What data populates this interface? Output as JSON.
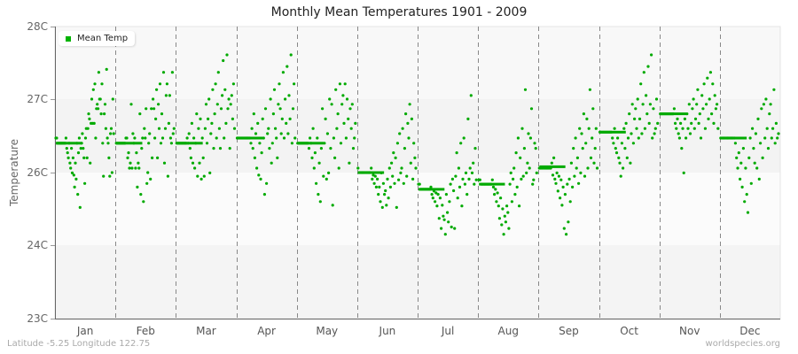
{
  "title": "Monthly Mean Temperatures 1901 - 2009",
  "footer": {
    "location": "Latitude -5.25 Longitude 122.75",
    "source": "worldspecies.org"
  },
  "legend": {
    "label": "Mean Temp",
    "color": "#00b300"
  },
  "colors": {
    "series": "#00aa00",
    "axis": "#666666",
    "grid_dash": "#888888",
    "bands": [
      "#f8f8f8",
      "#f3f3f3",
      "#fbfbfb",
      "#f4f4f4"
    ]
  },
  "chart_data": {
    "type": "scatter",
    "title": "Monthly Mean Temperatures 1901 - 2009",
    "xlabel": "",
    "ylabel": "Temperature",
    "categories": [
      "Jan",
      "Feb",
      "Mar",
      "Apr",
      "May",
      "Jun",
      "Jul",
      "Aug",
      "Sep",
      "Oct",
      "Nov",
      "Dec"
    ],
    "y_ticks": [
      {
        "label": "28C",
        "value": 28
      },
      {
        "label": "27C",
        "value": 27
      },
      {
        "label": "26C",
        "value": 26
      },
      {
        "label": "24C",
        "value": 24
      },
      {
        "label": "23C",
        "value": 23
      }
    ],
    "ylim": [
      23,
      28
    ],
    "grid": "month dividers dashed, horizontal banding",
    "legend_position": "top-left inside",
    "series": [
      {
        "name": "Mean Temp",
        "monthly_mean": [
          26.4,
          26.4,
          26.4,
          26.47,
          26.4,
          26.0,
          25.54,
          25.68,
          26.08,
          26.55,
          26.8,
          26.47
        ],
        "points": [
          [
            26.47,
            26.47,
            26.4,
            26.4,
            26.4,
            26.4,
            26.4,
            26.4,
            26.4,
            26.4,
            26.4,
            26.4,
            26.4,
            26.47,
            26.33,
            26.27,
            26.2,
            26.4,
            26.13,
            26.06,
            26.33,
            25.99,
            26.2,
            25.93,
            25.6,
            26.13,
            25.82,
            26.4,
            25.4,
            26.27,
            26.47,
            25.04,
            26.33,
            26.4,
            26.53,
            26.33,
            26.2,
            25.7,
            26.47,
            26.6,
            26.2,
            26.6,
            26.8,
            26.73,
            26.13,
            26.67,
            27.0,
            26.67,
            27.13,
            26.67,
            27.21,
            26.47,
            26.87,
            26.93,
            26.87,
            27.37,
            27.0,
            27.0,
            26.8,
            27.21,
            26.4,
            25.9,
            26.8,
            26.93,
            26.6,
            27.41,
            26.47,
            26.4,
            26.2,
            25.9,
            26.53,
            26.6,
            26.0,
            27.0,
            26.53
          ],
          [
            26.4,
            26.4,
            26.4,
            26.4,
            26.4,
            26.4,
            26.4,
            26.4,
            26.4,
            26.4,
            26.4,
            26.47,
            26.47,
            26.2,
            26.27,
            26.06,
            26.13,
            26.93,
            26.06,
            26.53,
            26.4,
            26.47,
            26.06,
            26.27,
            25.6,
            26.13,
            26.06,
            26.8,
            25.4,
            26.33,
            26.47,
            25.2,
            26.6,
            26.47,
            26.87,
            25.7,
            26.0,
            26.4,
            26.53,
            25.82,
            26.87,
            26.2,
            27.0,
            26.87,
            26.47,
            26.73,
            27.13,
            26.2,
            26.93,
            26.6,
            27.21,
            26.4,
            26.8,
            26.47,
            27.37,
            26.13,
            26.6,
            27.05,
            27.21,
            25.9,
            26.67,
            27.05,
            26.47,
            26.4,
            27.37,
            26.53,
            26.6
          ],
          [
            26.4,
            26.4,
            26.4,
            26.4,
            26.4,
            26.4,
            26.4,
            26.4,
            26.4,
            26.4,
            26.4,
            26.47,
            26.4,
            26.53,
            26.33,
            26.2,
            26.67,
            26.13,
            26.47,
            26.06,
            26.4,
            26.8,
            25.9,
            26.6,
            26.13,
            26.73,
            25.82,
            26.47,
            26.2,
            25.9,
            26.6,
            26.93,
            26.4,
            26.73,
            27.0,
            25.99,
            26.53,
            26.67,
            27.13,
            26.33,
            26.8,
            27.21,
            26.47,
            26.93,
            27.37,
            26.6,
            26.33,
            26.87,
            27.05,
            27.53,
            26.47,
            27.13,
            26.67,
            27.61,
            26.87,
            27.0,
            26.33,
            26.93,
            27.05,
            26.73,
            27.21,
            26.6
          ],
          [
            26.47,
            26.47,
            26.47,
            26.47,
            26.47,
            26.47,
            26.47,
            26.47,
            26.47,
            26.47,
            26.47,
            26.47,
            26.47,
            26.47,
            26.4,
            26.6,
            26.33,
            26.8,
            26.2,
            26.53,
            26.06,
            26.67,
            25.93,
            26.4,
            25.82,
            26.27,
            26.73,
            26.47,
            25.4,
            26.87,
            25.7,
            26.53,
            26.6,
            26.33,
            27.0,
            26.13,
            26.4,
            26.8,
            27.13,
            26.6,
            26.47,
            26.2,
            26.93,
            27.21,
            26.87,
            26.53,
            26.73,
            27.37,
            26.47,
            27.0,
            26.67,
            27.45,
            26.53,
            27.05,
            26.73,
            27.61,
            26.4,
            26.87,
            27.21,
            26.47
          ],
          [
            26.4,
            26.4,
            26.4,
            26.4,
            26.4,
            26.4,
            26.4,
            26.4,
            26.4,
            26.4,
            26.4,
            26.33,
            26.47,
            26.4,
            26.2,
            26.6,
            26.06,
            26.27,
            25.7,
            26.47,
            25.4,
            26.13,
            25.2,
            26.33,
            26.87,
            25.9,
            26.4,
            26.73,
            25.82,
            26.53,
            25.99,
            27.0,
            26.33,
            26.93,
            25.1,
            26.47,
            26.2,
            27.13,
            26.6,
            26.8,
            26.06,
            27.21,
            26.4,
            26.93,
            27.05,
            26.67,
            27.21,
            26.47,
            27.0,
            26.73,
            26.13,
            26.87,
            26.6,
            26.93,
            26.33,
            26.47,
            26.67
          ],
          [
            26.06,
            26.0,
            26.0,
            26.0,
            26.0,
            26.0,
            26.0,
            26.0,
            26.0,
            26.0,
            26.0,
            26.0,
            26.0,
            26.06,
            25.82,
            25.93,
            25.7,
            25.9,
            25.6,
            25.82,
            25.4,
            25.6,
            25.2,
            25.99,
            25.04,
            25.7,
            25.4,
            25.5,
            25.1,
            25.82,
            25.3,
            26.06,
            25.6,
            26.13,
            25.9,
            26.27,
            25.7,
            26.2,
            25.04,
            26.4,
            25.8,
            26.53,
            25.99,
            26.06,
            26.6,
            25.7,
            26.33,
            26.8,
            25.9,
            26.67,
            26.47,
            26.93,
            26.13,
            26.73,
            25.82,
            26.4,
            26.2,
            26.06
          ],
          [
            25.68,
            25.68,
            25.54,
            25.54,
            25.54,
            25.54,
            25.54,
            25.54,
            25.54,
            25.54,
            25.54,
            25.54,
            25.6,
            25.4,
            25.3,
            25.49,
            25.2,
            25.44,
            25.08,
            25.4,
            24.74,
            25.3,
            24.46,
            25.1,
            24.8,
            24.7,
            24.3,
            25.4,
            24.9,
            24.64,
            25.2,
            25.68,
            24.5,
            25.82,
            25.5,
            24.46,
            25.9,
            26.27,
            25.3,
            26.06,
            25.6,
            26.4,
            25.08,
            25.82,
            26.47,
            25.68,
            25.99,
            25.4,
            26.73,
            25.82,
            26.06,
            27.05,
            25.99,
            26.13,
            25.68,
            26.33,
            25.8
          ],
          [
            25.8,
            25.8,
            25.68,
            25.68,
            25.68,
            25.68,
            25.68,
            25.68,
            25.68,
            25.68,
            25.68,
            25.68,
            25.68,
            25.8,
            25.6,
            25.4,
            25.54,
            25.2,
            25.44,
            25.08,
            24.74,
            25.3,
            24.56,
            25.0,
            24.3,
            24.8,
            24.64,
            25.08,
            24.9,
            24.46,
            25.68,
            25.99,
            25.2,
            25.82,
            26.06,
            25.4,
            26.27,
            25.6,
            26.47,
            25.08,
            26.2,
            25.82,
            26.6,
            25.9,
            26.33,
            27.13,
            25.99,
            26.13,
            26.53,
            26.06,
            26.47,
            26.87,
            25.68,
            25.8,
            26.4,
            26.33,
            25.99
          ],
          [
            26.06,
            26.06,
            26.06,
            26.06,
            26.06,
            26.06,
            26.06,
            26.06,
            26.06,
            26.06,
            26.06,
            26.06,
            26.13,
            25.93,
            26.2,
            25.82,
            25.7,
            25.99,
            25.49,
            25.9,
            25.3,
            25.8,
            25.1,
            25.6,
            24.46,
            25.4,
            24.3,
            25.68,
            24.64,
            25.82,
            25.2,
            26.13,
            25.6,
            26.33,
            25.9,
            26.47,
            26.06,
            26.2,
            25.7,
            26.6,
            25.99,
            26.53,
            26.33,
            26.8,
            25.9,
            26.4,
            26.73,
            26.06,
            26.6,
            27.13,
            26.2,
            26.47,
            26.87,
            26.13,
            26.33,
            26.6,
            26.06
          ],
          [
            26.55,
            26.55,
            26.55,
            26.55,
            26.55,
            26.55,
            26.55,
            26.55,
            26.55,
            26.55,
            26.55,
            26.55,
            26.47,
            26.4,
            26.6,
            26.33,
            26.27,
            26.47,
            26.2,
            26.13,
            25.9,
            26.4,
            26.06,
            26.6,
            26.33,
            26.67,
            26.2,
            26.47,
            26.8,
            26.13,
            26.53,
            26.93,
            26.4,
            26.73,
            26.87,
            26.6,
            27.0,
            26.47,
            26.73,
            27.21,
            26.53,
            26.93,
            27.37,
            26.6,
            27.05,
            26.8,
            27.45,
            26.67,
            26.93,
            27.61,
            26.47,
            26.87,
            26.53,
            26.6,
            27.0,
            26.67
          ],
          [
            26.8,
            26.8,
            26.8,
            26.8,
            26.8,
            26.8,
            26.8,
            26.8,
            26.8,
            26.8,
            26.8,
            26.8,
            26.8,
            26.87,
            26.67,
            26.6,
            26.73,
            26.53,
            26.47,
            26.67,
            26.33,
            26.6,
            25.99,
            26.73,
            26.47,
            26.8,
            26.6,
            26.93,
            26.53,
            26.67,
            26.87,
            27.0,
            26.6,
            26.73,
            26.93,
            27.13,
            26.67,
            26.8,
            26.47,
            27.05,
            26.87,
            27.21,
            26.6,
            26.93,
            27.29,
            26.73,
            27.0,
            27.37,
            26.8,
            27.21,
            26.67,
            27.05,
            26.87,
            26.93,
            26.6
          ],
          [
            26.47,
            26.47,
            26.47,
            26.47,
            26.47,
            26.47,
            26.47,
            26.47,
            26.47,
            26.47,
            26.47,
            26.47,
            26.47,
            26.4,
            26.2,
            26.06,
            26.27,
            25.82,
            26.13,
            25.6,
            26.33,
            25.2,
            26.06,
            25.4,
            24.9,
            26.2,
            26.47,
            25.7,
            26.6,
            26.33,
            26.13,
            26.53,
            26.06,
            26.73,
            25.82,
            26.4,
            26.87,
            26.2,
            26.93,
            26.47,
            27.0,
            26.6,
            26.33,
            26.8,
            26.93,
            26.47,
            26.6,
            27.13,
            26.4,
            26.67,
            26.47,
            26.53
          ]
        ]
      }
    ]
  }
}
